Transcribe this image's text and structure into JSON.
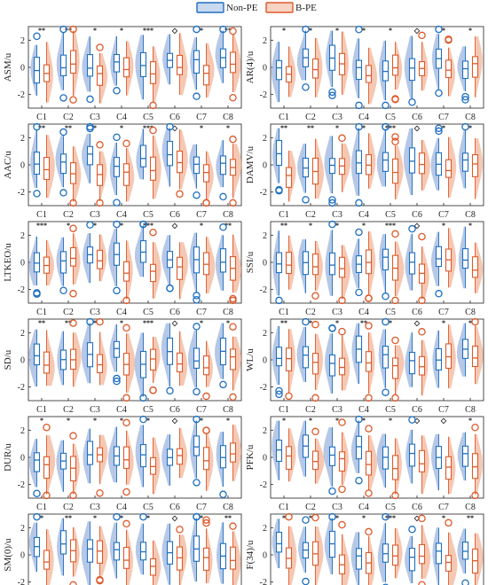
{
  "colors": {
    "non_pe": "#1f6fc0",
    "non_pe_fill": "#9db6dd",
    "b_pe": "#dd5a2b",
    "b_pe_fill": "#f2b59a",
    "axis": "#222222"
  },
  "legend": [
    {
      "label": "Non-PE",
      "color": "#1f6fc0"
    },
    {
      "label": "B-PE",
      "color": "#dd5a2b"
    }
  ],
  "chart_data": [
    {
      "type": "violin-box",
      "ylabel": "ASM/u",
      "ylim": [
        -3,
        3
      ],
      "yticks": [
        -2,
        0,
        2
      ],
      "categories": [
        "C1",
        "C2",
        "C3",
        "C4",
        "C5",
        "C6",
        "C7",
        "C8"
      ],
      "significance": [
        "**",
        "**",
        "*",
        "*",
        "***",
        "◇",
        "*",
        "**"
      ]
    },
    {
      "type": "violin-box",
      "ylabel": "AR(4)/u",
      "ylim": [
        -3,
        3
      ],
      "yticks": [
        -2,
        0,
        2
      ],
      "categories": [
        "C1",
        "C2",
        "C3",
        "C4",
        "C5",
        "C6",
        "C7",
        "C8"
      ],
      "significance": [
        "*",
        "*",
        "*",
        "*",
        "*",
        "◇",
        "*",
        "*"
      ]
    },
    {
      "type": "violin-box",
      "ylabel": "AAC/u",
      "ylim": [
        -3,
        3
      ],
      "yticks": [
        -2,
        0,
        2
      ],
      "categories": [
        "C1",
        "C2",
        "C3",
        "C4",
        "C5",
        "C6",
        "C7",
        "C8"
      ],
      "significance": [
        "**",
        "**",
        "*",
        "*",
        "***",
        "◇",
        "*",
        "*"
      ]
    },
    {
      "type": "violin-box",
      "ylabel": "DAMV/u",
      "ylim": [
        -3,
        3
      ],
      "yticks": [
        -2,
        0,
        2
      ],
      "categories": [
        "C1",
        "C2",
        "C3",
        "C4",
        "C5",
        "C6",
        "C7",
        "C8"
      ],
      "significance": [
        "**",
        "**",
        "*",
        "*",
        "***",
        "◇",
        "*",
        "*"
      ]
    },
    {
      "type": "violin-box",
      "ylabel": "LTKEO/u",
      "ylim": [
        -3,
        3
      ],
      "yticks": [
        -2,
        0,
        2
      ],
      "categories": [
        "C1",
        "C2",
        "C3",
        "C4",
        "C5",
        "C6",
        "C7",
        "C8"
      ],
      "significance": [
        "***",
        "*",
        "*",
        "*",
        "***",
        "◇",
        "*",
        "**"
      ]
    },
    {
      "type": "violin-box",
      "ylabel": "SSI/u",
      "ylim": [
        -3,
        3
      ],
      "yticks": [
        -2,
        0,
        2
      ],
      "categories": [
        "C1",
        "C2",
        "C3",
        "C4",
        "C5",
        "C6",
        "C7",
        "C8"
      ],
      "significance": [
        "**",
        "*",
        "*",
        "*",
        "***",
        "◇",
        "*",
        "*"
      ]
    },
    {
      "type": "violin-box",
      "ylabel": "SD/u",
      "ylim": [
        -3,
        3
      ],
      "yticks": [
        -2,
        0,
        2
      ],
      "categories": [
        "C1",
        "C2",
        "C3",
        "C4",
        "C5",
        "C6",
        "C7",
        "C8"
      ],
      "significance": [
        "**",
        "**",
        "*",
        "*",
        "***",
        "◇",
        "*",
        "*"
      ]
    },
    {
      "type": "violin-box",
      "ylabel": "WL/u",
      "ylim": [
        -3,
        3
      ],
      "yticks": [
        -2,
        0,
        2
      ],
      "categories": [
        "C1",
        "C2",
        "C3",
        "C4",
        "C5",
        "C6",
        "C7",
        "C8"
      ],
      "significance": [
        "**",
        "*",
        "*",
        "**",
        "*",
        "◇",
        "*",
        "*"
      ]
    },
    {
      "type": "violin-box",
      "ylabel": "DUR/u",
      "ylim": [
        -3,
        3
      ],
      "yticks": [
        -2,
        0,
        2
      ],
      "categories": [
        "C1",
        "C2",
        "C3",
        "C4",
        "C5",
        "C6",
        "C7",
        "C8"
      ],
      "significance": [
        "*",
        "*",
        "*",
        "*",
        "*",
        "◇",
        "*",
        "*"
      ]
    },
    {
      "type": "violin-box",
      "ylabel": "PFK/u",
      "ylim": [
        -3,
        3
      ],
      "yticks": [
        -2,
        0,
        2
      ],
      "categories": [
        "C1",
        "C2",
        "C3",
        "C4",
        "C5",
        "C6",
        "C7",
        "C8"
      ],
      "significance": [
        "*",
        "*",
        "*",
        "*",
        "*",
        "◇",
        "◇",
        "*"
      ]
    },
    {
      "type": "violin-box",
      "ylabel": "SM(0)/u",
      "ylim": [
        -3,
        3
      ],
      "yticks": [
        -2,
        0,
        2
      ],
      "categories": [
        "C1",
        "C2",
        "C3",
        "C4",
        "C5",
        "C6",
        "C7",
        "C8"
      ],
      "significance": [
        "*",
        "**",
        "*",
        "*",
        "*",
        "◇",
        "*",
        "**"
      ]
    },
    {
      "type": "violin-box",
      "ylabel": "F(34)/u",
      "ylim": [
        -3,
        3
      ],
      "yticks": [
        -2,
        0,
        2
      ],
      "categories": [
        "C1",
        "C2",
        "C3",
        "C4",
        "C5",
        "C6",
        "C7",
        "C8"
      ],
      "significance": [
        "*",
        "*",
        "*",
        "*",
        "***",
        "◇",
        "*",
        "**"
      ]
    }
  ]
}
